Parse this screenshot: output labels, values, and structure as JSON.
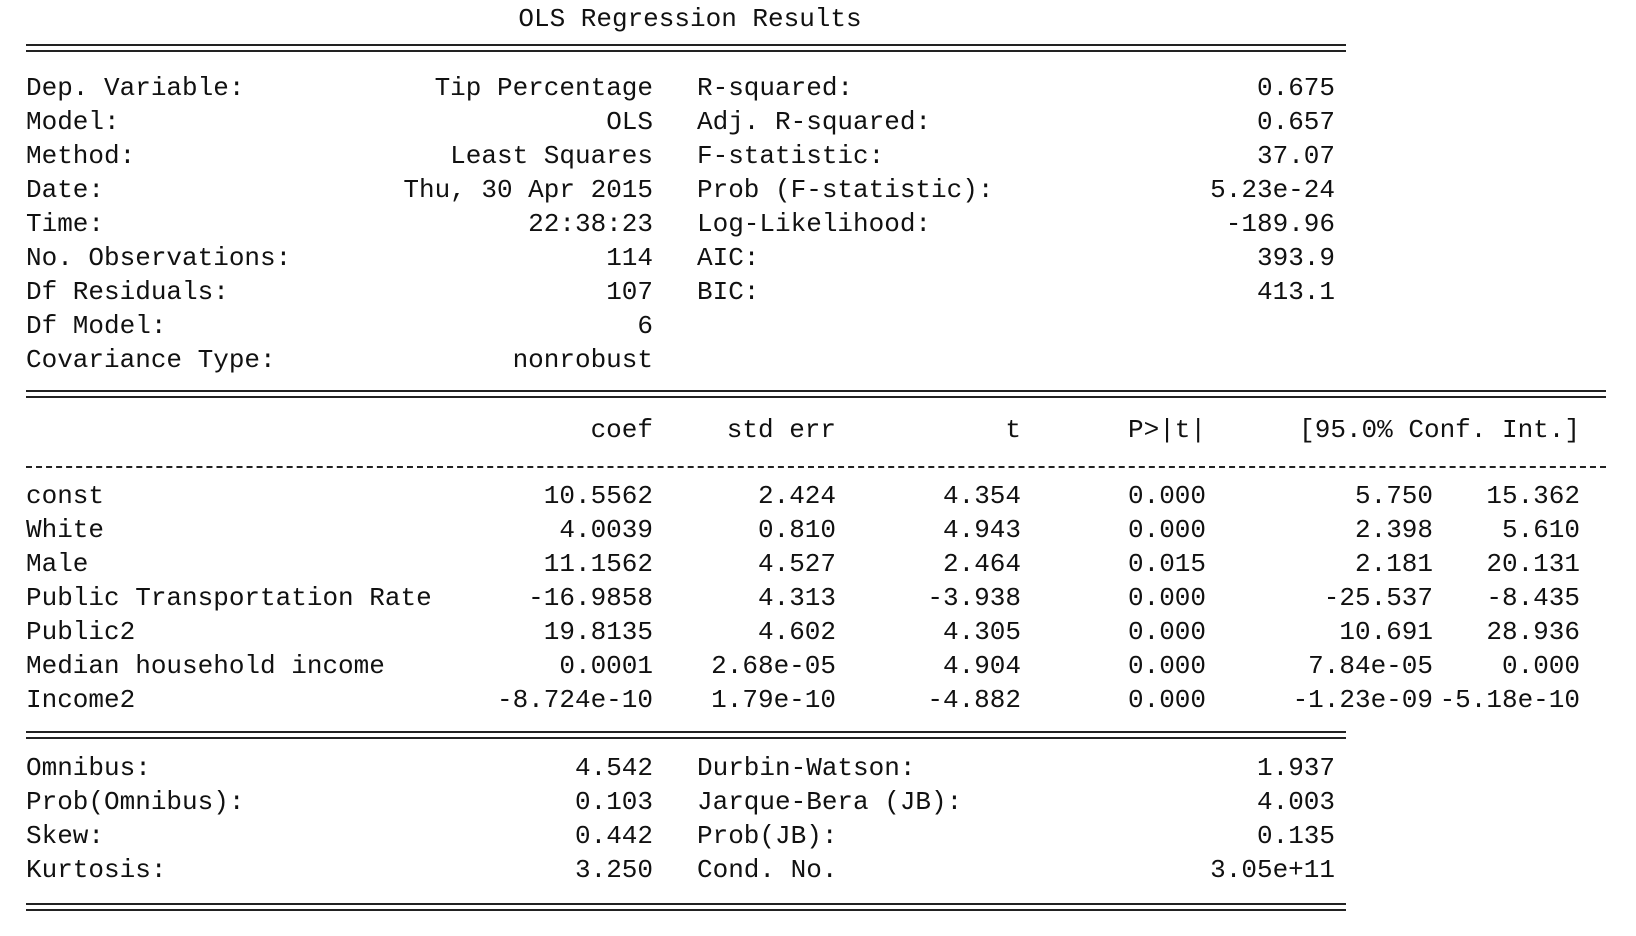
{
  "title": "OLS Regression Results",
  "summary": {
    "left": [
      {
        "label": "Dep. Variable:",
        "value": "Tip Percentage"
      },
      {
        "label": "Model:",
        "value": "OLS"
      },
      {
        "label": "Method:",
        "value": "Least Squares"
      },
      {
        "label": "Date:",
        "value": "Thu, 30 Apr 2015"
      },
      {
        "label": "Time:",
        "value": "22:38:23"
      },
      {
        "label": "No. Observations:",
        "value": "114"
      },
      {
        "label": "Df Residuals:",
        "value": "107"
      },
      {
        "label": "Df Model:",
        "value": "6"
      },
      {
        "label": "Covariance Type:",
        "value": "nonrobust"
      }
    ],
    "right": [
      {
        "label": "R-squared:",
        "value": "0.675"
      },
      {
        "label": "Adj. R-squared:",
        "value": "0.657"
      },
      {
        "label": "F-statistic:",
        "value": "37.07"
      },
      {
        "label": "Prob (F-statistic):",
        "value": "5.23e-24"
      },
      {
        "label": "Log-Likelihood:",
        "value": "-189.96"
      },
      {
        "label": "AIC:",
        "value": "393.9"
      },
      {
        "label": "BIC:",
        "value": "413.1"
      }
    ]
  },
  "coef_table": {
    "headers": [
      "coef",
      "std err",
      "t",
      "P>|t|",
      "[95.0% Conf. Int.]"
    ],
    "rows": [
      {
        "name": "const",
        "coef": "10.5562",
        "stderr": "2.424",
        "t": "4.354",
        "p": "0.000",
        "lo": "5.750",
        "hi": "15.362"
      },
      {
        "name": "White",
        "coef": "4.0039",
        "stderr": "0.810",
        "t": "4.943",
        "p": "0.000",
        "lo": "2.398",
        "hi": "5.610"
      },
      {
        "name": "Male",
        "coef": "11.1562",
        "stderr": "4.527",
        "t": "2.464",
        "p": "0.015",
        "lo": "2.181",
        "hi": "20.131"
      },
      {
        "name": "Public Transportation Rate",
        "coef": "-16.9858",
        "stderr": "4.313",
        "t": "-3.938",
        "p": "0.000",
        "lo": "-25.537",
        "hi": "-8.435"
      },
      {
        "name": "Public2",
        "coef": "19.8135",
        "stderr": "4.602",
        "t": "4.305",
        "p": "0.000",
        "lo": "10.691",
        "hi": "28.936"
      },
      {
        "name": "Median household income",
        "coef": "0.0001",
        "stderr": "2.68e-05",
        "t": "4.904",
        "p": "0.000",
        "lo": "7.84e-05",
        "hi": "0.000"
      },
      {
        "name": "Income2",
        "coef": "-8.724e-10",
        "stderr": "1.79e-10",
        "t": "-4.882",
        "p": "0.000",
        "lo": "-1.23e-09",
        "hi": "-5.18e-10"
      }
    ]
  },
  "diagnostics": {
    "left": [
      {
        "label": "Omnibus:",
        "value": "4.542"
      },
      {
        "label": "Prob(Omnibus):",
        "value": "0.103"
      },
      {
        "label": "Skew:",
        "value": "0.442"
      },
      {
        "label": "Kurtosis:",
        "value": "3.250"
      }
    ],
    "right": [
      {
        "label": "Durbin-Watson:",
        "value": "1.937"
      },
      {
        "label": "Jarque-Bera (JB):",
        "value": "4.003"
      },
      {
        "label": "Prob(JB):",
        "value": "0.135"
      },
      {
        "label": "Cond. No.",
        "value": "3.05e+11"
      }
    ]
  }
}
